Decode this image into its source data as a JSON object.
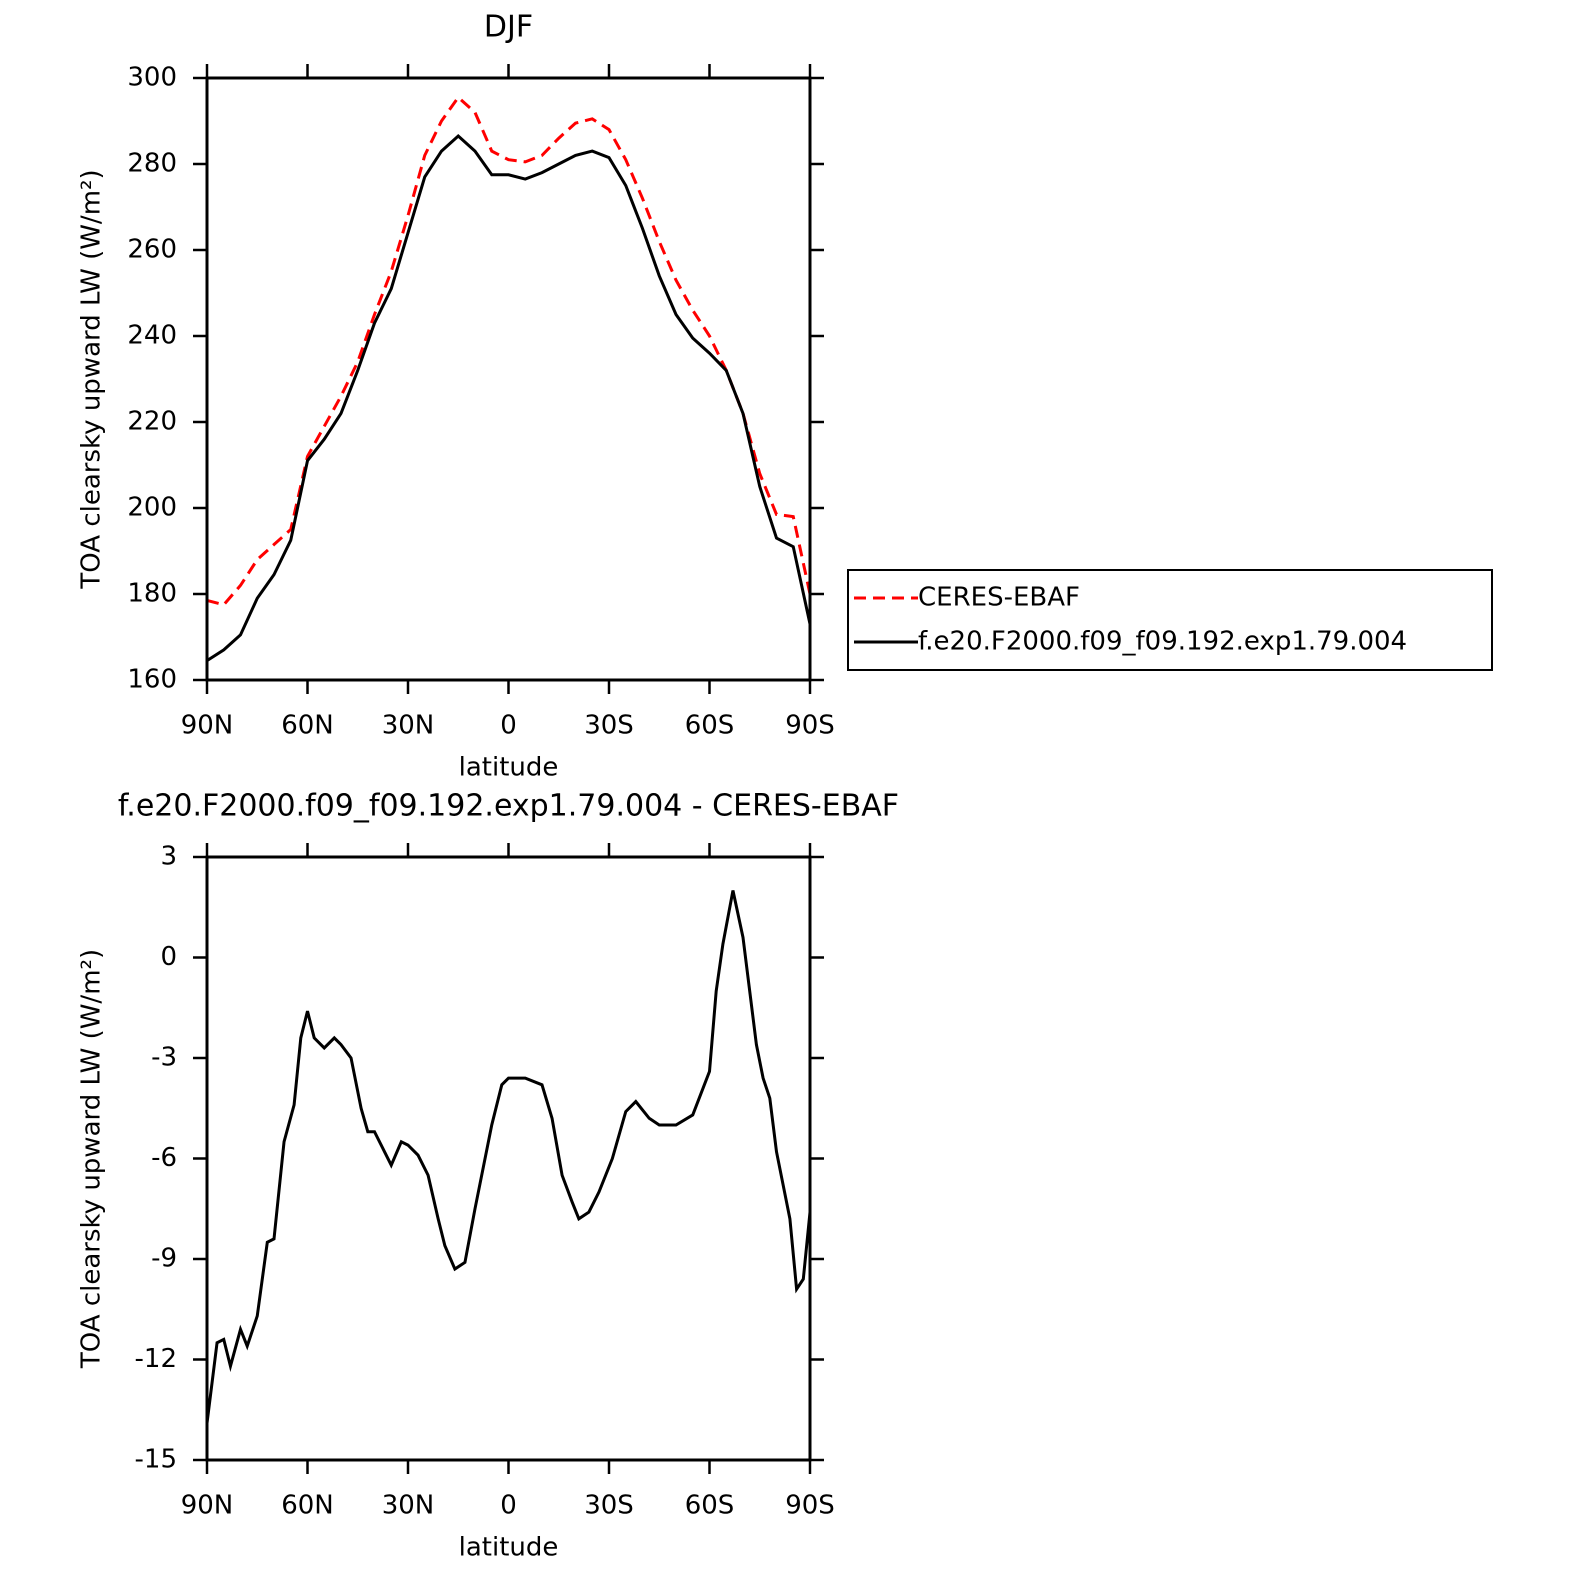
{
  "chart_data": [
    {
      "type": "line",
      "title": "DJF",
      "xlabel": "latitude",
      "ylabel": "TOA clearsky upward LW (W/m²)",
      "x": [
        90,
        85,
        80,
        75,
        70,
        65,
        60,
        55,
        50,
        45,
        40,
        35,
        30,
        25,
        20,
        15,
        10,
        5,
        0,
        -5,
        -10,
        -15,
        -20,
        -25,
        -30,
        -35,
        -40,
        -45,
        -50,
        -55,
        -60,
        -65,
        -70,
        -75,
        -80,
        -85,
        -90
      ],
      "series": [
        {
          "name": "CERES-EBAF",
          "color": "#ff0000",
          "line_style": "dashed",
          "values": [
            178.5,
            177.5,
            182,
            188,
            191.5,
            195,
            212,
            219,
            226,
            234,
            245,
            255,
            268,
            282,
            290,
            295.5,
            292,
            283,
            281,
            280.5,
            282,
            286,
            289.5,
            290.5,
            288,
            281,
            272,
            262,
            253,
            246,
            240,
            232,
            222,
            208,
            198.5,
            198,
            180
          ]
        },
        {
          "name": "f.e20.F2000.f09_f09.192.exp1.79.004",
          "color": "#000000",
          "line_style": "solid",
          "values": [
            164.5,
            167,
            170.5,
            179,
            184.5,
            192.5,
            211,
            216,
            222,
            232,
            243,
            251,
            264,
            277,
            283,
            286.5,
            283,
            277.5,
            277.5,
            276.5,
            278,
            280,
            282,
            283,
            281.5,
            275,
            265,
            254,
            245,
            239.5,
            236,
            232,
            222,
            205,
            193,
            191,
            173
          ]
        }
      ],
      "xlim": [
        90,
        -90
      ],
      "xticks": [
        {
          "value": 90,
          "label": "90N"
        },
        {
          "value": 60,
          "label": "60N"
        },
        {
          "value": 30,
          "label": "30N"
        },
        0,
        {
          "value": -30,
          "label": "30S"
        },
        {
          "value": -60,
          "label": "60S"
        },
        {
          "value": -90,
          "label": "90S"
        }
      ],
      "ylim": [
        160,
        300
      ],
      "yticks": [
        160,
        180,
        200,
        220,
        240,
        260,
        280,
        300
      ],
      "legend": "outside-right"
    },
    {
      "type": "line",
      "title": "f.e20.F2000.f09_f09.192.exp1.79.004 - CERES-EBAF",
      "xlabel": "latitude",
      "ylabel": "TOA clearsky upward LW (W/m²)",
      "x": [
        90,
        87,
        85,
        83,
        80,
        78,
        75,
        72,
        70,
        67,
        64,
        62,
        60,
        58,
        55,
        52,
        50,
        47,
        44,
        42,
        40,
        37,
        35,
        32,
        30,
        27,
        24,
        21,
        19,
        16,
        13,
        10,
        5,
        2,
        0,
        -5,
        -10,
        -13,
        -16,
        -19,
        -21,
        -24,
        -27,
        -31,
        -35,
        -38,
        -42,
        -45,
        -50,
        -55,
        -60,
        -62,
        -64,
        -67,
        -70,
        -74,
        -76,
        -78,
        -80,
        -84,
        -86,
        -88,
        -90
      ],
      "series": [
        {
          "color": "#000000",
          "line_style": "solid",
          "values": [
            -13.9,
            -11.5,
            -11.4,
            -12.2,
            -11.1,
            -11.6,
            -10.7,
            -8.5,
            -8.4,
            -5.5,
            -4.4,
            -2.4,
            -1.6,
            -2.4,
            -2.7,
            -2.4,
            -2.6,
            -3.0,
            -4.5,
            -5.2,
            -5.2,
            -5.8,
            -6.2,
            -5.5,
            -5.6,
            -5.9,
            -6.5,
            -7.8,
            -8.6,
            -9.3,
            -9.1,
            -7.5,
            -5.0,
            -3.8,
            -3.6,
            -3.6,
            -3.8,
            -4.8,
            -6.5,
            -7.3,
            -7.8,
            -7.6,
            -7.0,
            -6.0,
            -4.6,
            -4.3,
            -4.8,
            -5.0,
            -5.0,
            -4.7,
            -3.4,
            -1.0,
            0.4,
            2.0,
            0.6,
            -2.6,
            -3.6,
            -4.2,
            -5.8,
            -7.8,
            -9.9,
            -9.6,
            -7.6
          ]
        }
      ],
      "xlim": [
        90,
        -90
      ],
      "xticks": [
        {
          "value": 90,
          "label": "90N"
        },
        {
          "value": 60,
          "label": "60N"
        },
        {
          "value": 30,
          "label": "30N"
        },
        0,
        {
          "value": -30,
          "label": "30S"
        },
        {
          "value": -60,
          "label": "60S"
        },
        {
          "value": -90,
          "label": "90S"
        }
      ],
      "ylim": [
        -15,
        3
      ],
      "yticks": [
        -15,
        -12,
        -9,
        -6,
        -3,
        0,
        3
      ]
    }
  ]
}
